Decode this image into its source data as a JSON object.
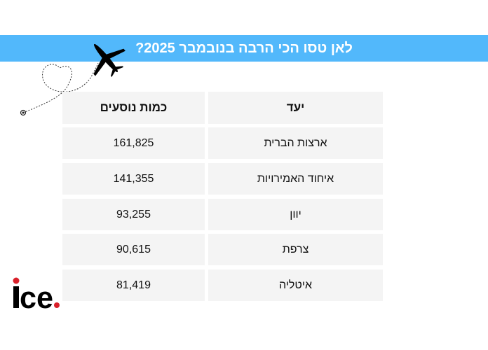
{
  "title": "לאן טסו הכי הרבה בנובמבר 2025?",
  "colors": {
    "banner": "#52b8fb",
    "cell_bg": "#f4f4f4",
    "logo_dot": "#d9202a"
  },
  "table": {
    "headers": {
      "destination": "יעד",
      "passengers": "כמות נוסעים"
    },
    "rows": [
      {
        "destination": "ארצות הברית",
        "passengers": "161,825"
      },
      {
        "destination": "איחוד האמירויות",
        "passengers": "141,355"
      },
      {
        "destination": "יוון",
        "passengers": "93,255"
      },
      {
        "destination": "צרפת",
        "passengers": "90,615"
      },
      {
        "destination": "איטליה",
        "passengers": "81,419"
      }
    ]
  },
  "logo": {
    "text": "ice."
  }
}
